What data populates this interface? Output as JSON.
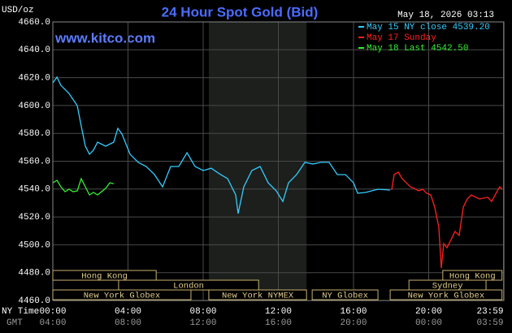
{
  "chart_data": {
    "type": "line",
    "title": "24 Hour Spot Gold (Bid)",
    "unit_label": "USD/oz",
    "timestamp": "May 18, 2026 03:13",
    "site": "www.kitco.com",
    "x_axis_label": "NY Time",
    "x2_axis_label": "GMT",
    "xlim": [
      0,
      24
    ],
    "ylim": [
      4460,
      4660
    ],
    "yticks": [
      {
        "value": 4460,
        "label": "4460.0"
      },
      {
        "value": 4480,
        "label": "4480.0"
      },
      {
        "value": 4500,
        "label": "4500.0"
      },
      {
        "value": 4520,
        "label": "4520.0"
      },
      {
        "value": 4540,
        "label": "4540.0"
      },
      {
        "value": 4560,
        "label": "4560.0"
      },
      {
        "value": 4580,
        "label": "4580.0"
      },
      {
        "value": 4600,
        "label": "4600.0"
      },
      {
        "value": 4620,
        "label": "4620.0"
      },
      {
        "value": 4640,
        "label": "4640.0"
      },
      {
        "value": 4660,
        "label": "4660.0"
      }
    ],
    "xticks": [
      {
        "value": 0,
        "label": "00:00"
      },
      {
        "value": 4,
        "label": "04:00"
      },
      {
        "value": 8,
        "label": "08:00"
      },
      {
        "value": 12,
        "label": "12:00"
      },
      {
        "value": 16,
        "label": "16:00"
      },
      {
        "value": 20,
        "label": "20:00"
      },
      {
        "value": 23.98,
        "label": "23:59"
      }
    ],
    "x2ticks": [
      {
        "value": 0,
        "label": "04:00"
      },
      {
        "value": 4,
        "label": "08:00"
      },
      {
        "value": 8,
        "label": "12:00"
      },
      {
        "value": 12,
        "label": "16:00"
      },
      {
        "value": 16,
        "label": "20:00"
      },
      {
        "value": 20,
        "label": "00:00"
      },
      {
        "value": 23.98,
        "label": "03:59"
      }
    ],
    "grid": true,
    "shaded": [
      8.3,
      13.5
    ],
    "sessions": [
      {
        "name": "Hong Kong",
        "start": 0,
        "end": 5.5,
        "row": 0
      },
      {
        "name": "Hong Kong",
        "start": 20.75,
        "end": 23.9,
        "row": 0
      },
      {
        "name": "London",
        "start": 3.5,
        "end": 10.95,
        "row": 1
      },
      {
        "name": "Sydney",
        "start": 18.95,
        "end": 23.05,
        "row": 1
      },
      {
        "name": "New York Globex",
        "start": 0,
        "end": 7.35,
        "row": 2
      },
      {
        "name": "New York NYMEX",
        "start": 8.3,
        "end": 13.5,
        "row": 2
      },
      {
        "name": "NY Globex",
        "start": 13.8,
        "end": 17.3,
        "row": 2
      },
      {
        "name": "New York Globex",
        "start": 17.95,
        "end": 23.9,
        "row": 2
      }
    ],
    "series": [
      {
        "name": "May 15 NY close 4539.20",
        "color": "#33ccff",
        "x": [
          0,
          0.22,
          0.43,
          0.86,
          1.3,
          1.51,
          1.73,
          1.95,
          2.16,
          2.38,
          2.81,
          3.24,
          3.46,
          3.68,
          4.11,
          4.54,
          4.97,
          5.41,
          5.84,
          6.27,
          6.7,
          7.14,
          7.57,
          8.0,
          8.43,
          8.86,
          9.3,
          9.73,
          9.86,
          10.16,
          10.59,
          11.03,
          11.46,
          11.89,
          12.24,
          12.54,
          12.97,
          13.41,
          13.84,
          14.27,
          14.7,
          15.14,
          15.57,
          16.0,
          16.22,
          16.65,
          17.3,
          17.95
        ],
        "values": [
          4616.3,
          4620.4,
          4614.5,
          4608.7,
          4599.9,
          4585.4,
          4570.8,
          4565.0,
          4567.9,
          4573.7,
          4570.8,
          4573.7,
          4583.6,
          4579.5,
          4565.0,
          4559.2,
          4556.2,
          4550.4,
          4541.6,
          4556.2,
          4556.2,
          4566.1,
          4556.2,
          4553.3,
          4555.0,
          4551.0,
          4547.5,
          4535.8,
          4522.4,
          4541.6,
          4553.3,
          4556.2,
          4544.5,
          4538.7,
          4531.1,
          4544.5,
          4550.4,
          4559.2,
          4558.0,
          4559.2,
          4559.2,
          4550.4,
          4550.4,
          4544.5,
          4537.0,
          4537.6,
          4539.9,
          4539.3
        ]
      },
      {
        "name": "May 17 Sunday",
        "color": "#ff2020",
        "x": [
          18.03,
          18.16,
          18.38,
          18.59,
          18.81,
          19.03,
          19.24,
          19.46,
          19.68,
          19.89,
          20.11,
          20.32,
          20.54,
          20.67,
          20.8,
          20.97,
          21.19,
          21.4,
          21.62,
          21.84,
          22.05,
          22.27,
          22.7,
          23.14,
          23.35,
          23.65,
          23.78,
          23.91
        ],
        "values": [
          4539.3,
          4550.4,
          4552.1,
          4547.5,
          4544.5,
          4541.6,
          4540.5,
          4538.7,
          4539.9,
          4537.0,
          4535.8,
          4527.0,
          4512.5,
          4483.3,
          4500.8,
          4497.9,
          4503.7,
          4509.6,
          4506.7,
          4527.0,
          4532.9,
          4535.8,
          4532.9,
          4534.1,
          4531.1,
          4538.7,
          4541.6,
          4539.9
        ]
      },
      {
        "name": "May 18 Last 4542.50",
        "color": "#33ee33",
        "x": [
          0,
          0.22,
          0.43,
          0.65,
          0.86,
          1.08,
          1.3,
          1.51,
          1.73,
          1.95,
          2.16,
          2.38,
          2.59,
          2.81,
          3.03,
          3.24
        ],
        "values": [
          4544.5,
          4546.3,
          4541.6,
          4538.1,
          4539.9,
          4538.1,
          4538.7,
          4547.5,
          4541.6,
          4535.8,
          4537.6,
          4535.8,
          4538.1,
          4540.5,
          4544.5,
          4543.9
        ]
      }
    ]
  }
}
